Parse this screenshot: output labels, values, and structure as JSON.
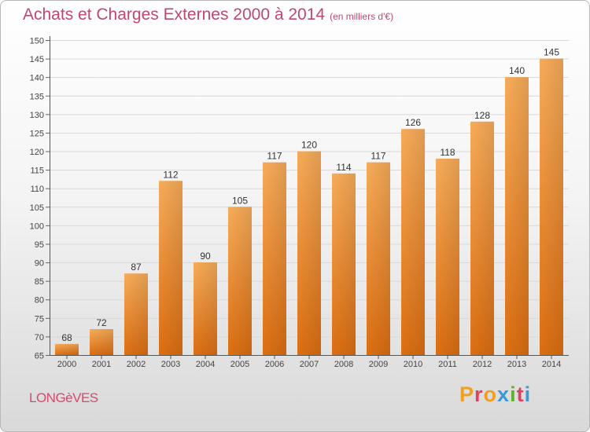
{
  "title": "Achats et Charges Externes 2000 à 2014",
  "subtitle": "(en milliers d'€)",
  "commune": "LONGèVES",
  "logo": {
    "letters": [
      "P",
      "r",
      "o",
      "x",
      "i",
      "t",
      "i"
    ],
    "colors": [
      "#f0a020",
      "#e04060",
      "#f0a020",
      "#3a9ad9",
      "#60b030",
      "#e04060",
      "#3a9ad9"
    ]
  },
  "colors": {
    "bar": "#f08a25",
    "bar_light": "#f7ac5a",
    "bar_dark": "#dc6e12",
    "title": "#c0476e"
  },
  "chart_data": {
    "type": "bar",
    "categories": [
      "2000",
      "2001",
      "2002",
      "2003",
      "2004",
      "2005",
      "2006",
      "2007",
      "2008",
      "2009",
      "2010",
      "2011",
      "2012",
      "2013",
      "2014"
    ],
    "values": [
      68,
      72,
      87,
      112,
      90,
      105,
      117,
      120,
      114,
      117,
      126,
      118,
      128,
      140,
      145
    ],
    "ylim": [
      65,
      150
    ],
    "yticks": [
      65,
      70,
      75,
      80,
      85,
      90,
      95,
      100,
      105,
      110,
      115,
      120,
      125,
      130,
      135,
      140,
      145,
      150
    ],
    "grid": true
  }
}
